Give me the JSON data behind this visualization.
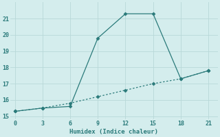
{
  "xlabel": "Humidex (Indice chaleur)",
  "line1_x": [
    0,
    3,
    6,
    9,
    12,
    15,
    18,
    21
  ],
  "line1_y": [
    15.3,
    15.5,
    15.6,
    19.8,
    21.3,
    21.3,
    17.3,
    17.8
  ],
  "line2_x": [
    0,
    3,
    6,
    9,
    12,
    15,
    18,
    21
  ],
  "line2_y": [
    15.3,
    15.5,
    15.8,
    16.2,
    16.6,
    17.0,
    17.3,
    17.8
  ],
  "line_color": "#2a7a7a",
  "bg_color": "#d4eded",
  "grid_color": "#b8d8d8",
  "xlim": [
    -0.5,
    22
  ],
  "ylim": [
    14.8,
    22
  ],
  "xticks": [
    0,
    3,
    6,
    9,
    12,
    15,
    18,
    21
  ],
  "yticks": [
    15,
    16,
    17,
    18,
    19,
    20,
    21
  ],
  "markersize": 2.5,
  "linewidth": 0.9,
  "tick_fontsize": 6.0,
  "xlabel_fontsize": 6.5
}
